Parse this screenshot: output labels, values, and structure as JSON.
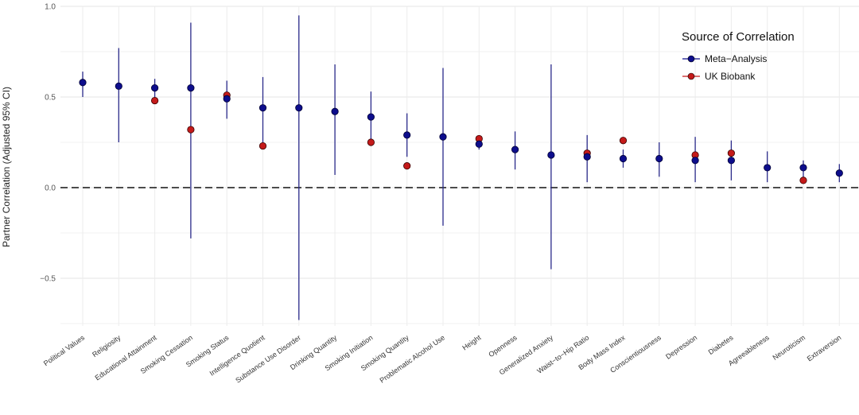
{
  "chart_data": {
    "type": "scatter",
    "title": "",
    "xlabel": "",
    "ylabel": "Partner Correlation (Adjusted 95% CI)",
    "ylim": [
      -0.75,
      1.0
    ],
    "yticks": [
      1.0,
      0.5,
      0.0,
      -0.5
    ],
    "ytick_labels": [
      "1.0",
      "0.5",
      "0.0",
      "−0.5"
    ],
    "reference_line": 0.0,
    "grid": true,
    "legend": {
      "title": "Source of Correlation",
      "position": "top-right",
      "entries": [
        "Meta−Analysis",
        "UK Biobank"
      ]
    },
    "categories": [
      "Political Values",
      "Religiosity",
      "Educational Attainment",
      "Smoking Cessation",
      "Smoking Status",
      "Intelligence Quotient",
      "Substance Use Disorder",
      "Drinking Quantity",
      "Smoking Initiation",
      "Smoking Quantity",
      "Problematic Alcohol Use",
      "Height",
      "Openness",
      "Generalized Anxiety",
      "Waist−to−Hip Ratio",
      "Body Mass Index",
      "Conscientiousness",
      "Depression",
      "Diabetes",
      "Agreeableness",
      "Neuroticism",
      "Extraversion"
    ],
    "series": [
      {
        "name": "Meta−Analysis",
        "color": "#0d0d8c",
        "values": [
          0.58,
          0.56,
          0.55,
          0.55,
          0.49,
          0.44,
          0.44,
          0.42,
          0.39,
          0.29,
          0.28,
          0.24,
          0.21,
          0.18,
          0.17,
          0.16,
          0.16,
          0.15,
          0.15,
          0.11,
          0.11,
          0.08
        ],
        "ci_low": [
          0.5,
          0.25,
          0.49,
          -0.28,
          0.38,
          0.23,
          -0.73,
          0.07,
          0.26,
          0.17,
          -0.21,
          0.21,
          0.1,
          -0.45,
          0.03,
          0.11,
          0.06,
          0.03,
          0.04,
          0.03,
          0.05,
          0.03
        ],
        "ci_high": [
          0.64,
          0.77,
          0.6,
          0.91,
          0.59,
          0.61,
          0.95,
          0.68,
          0.53,
          0.41,
          0.66,
          0.28,
          0.31,
          0.68,
          0.29,
          0.21,
          0.25,
          0.28,
          0.26,
          0.2,
          0.15,
          0.13
        ]
      },
      {
        "name": "UK Biobank",
        "color": "#c41a1a",
        "values": [
          null,
          null,
          0.48,
          0.32,
          0.51,
          0.23,
          null,
          null,
          0.25,
          0.12,
          null,
          0.27,
          null,
          null,
          0.19,
          0.26,
          null,
          0.18,
          0.19,
          null,
          0.04,
          null
        ]
      }
    ]
  }
}
